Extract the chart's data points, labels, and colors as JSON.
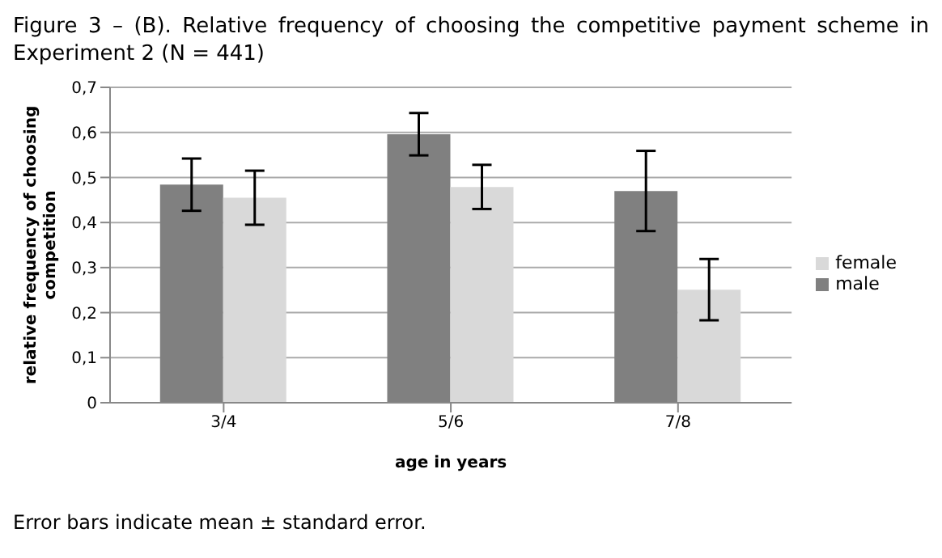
{
  "chart_data": {
    "type": "bar",
    "title": "Figure 3 – (B). Relative frequency of choosing the competitive payment scheme in Experiment 2 (N = 441)",
    "xlabel": "age in years",
    "ylabel": "relative frequency of choosing competition",
    "categories": [
      "3/4",
      "5/6",
      "7/8"
    ],
    "series": [
      {
        "name": "male",
        "color": "#808080",
        "values": [
          0.484,
          0.596,
          0.47
        ],
        "errors": [
          0.058,
          0.047,
          0.089
        ]
      },
      {
        "name": "female",
        "color": "#d9d9d9",
        "values": [
          0.455,
          0.479,
          0.251
        ],
        "errors": [
          0.06,
          0.049,
          0.068
        ]
      }
    ],
    "ylim": [
      0,
      0.7
    ],
    "yticks": [
      {
        "value": 0,
        "label": "0"
      },
      {
        "value": 0.1,
        "label": "0,1"
      },
      {
        "value": 0.2,
        "label": "0,2"
      },
      {
        "value": 0.3,
        "label": "0,3"
      },
      {
        "value": 0.4,
        "label": "0,4"
      },
      {
        "value": 0.5,
        "label": "0,5"
      },
      {
        "value": 0.6,
        "label": "0,6"
      },
      {
        "value": 0.7,
        "label": "0,7"
      }
    ],
    "grid": "y",
    "legend": "right",
    "annotations": [
      "Error bars indicate mean ± standard error."
    ]
  }
}
